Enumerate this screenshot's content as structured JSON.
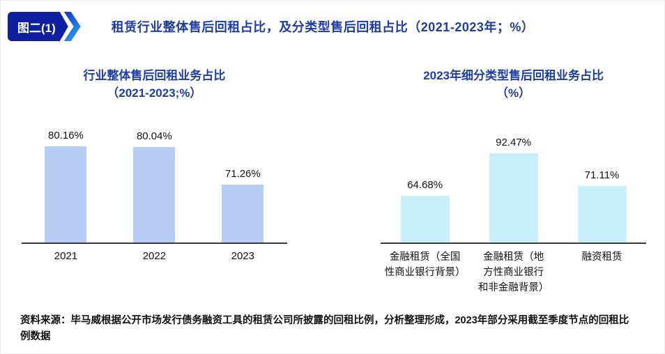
{
  "header": {
    "figure_label": "图二(1)",
    "title": "租赁行业整体售后回租占比，及分类型售后回租占比（2021-2023年；%）"
  },
  "chart_data": [
    {
      "type": "bar",
      "title": "行业整体售后回租业务占比",
      "subtitle": "（2021-2023;%）",
      "categories": [
        "2021",
        "2022",
        "2023"
      ],
      "categories_lines": [
        [
          "2021"
        ],
        [
          "2022"
        ],
        [
          "2023"
        ]
      ],
      "values": [
        80.16,
        80.04,
        71.26
      ],
      "value_labels": [
        "80.16%",
        "80.04%",
        "71.26%"
      ],
      "bar_color": "#b6cdf6",
      "xlabel": "",
      "ylabel": "",
      "ylim": [
        58,
        84
      ],
      "grid": false,
      "legend": "none",
      "data_labels_position": "above-bar"
    },
    {
      "type": "bar",
      "title": "2023年细分类型售后回租业务占比",
      "subtitle": "（%）",
      "categories": [
        "金融租赁（全国性商业银行背景）",
        "金融租赁（地方性商业银行和非金融背景）",
        "融资租赁"
      ],
      "categories_lines": [
        [
          "金融租赁（全国",
          "性商业银行背景）"
        ],
        [
          "金融租赁（地",
          "方性商业银行",
          "和非金融背景）"
        ],
        [
          "融资租赁"
        ]
      ],
      "values": [
        64.68,
        92.47,
        71.11
      ],
      "value_labels": [
        "64.68%",
        "92.47%",
        "71.11%"
      ],
      "bar_color": "#c9effc",
      "xlabel": "",
      "ylabel": "",
      "ylim": [
        34,
        108
      ],
      "grid": false,
      "legend": "none",
      "data_labels_position": "above-bar"
    }
  ],
  "footer": {
    "source": "资料来源：毕马威根据公开市场发行债务融资工具的租赁公司所披露的回租比例，分析整理形成，2023年部分采用截至季度节点的回租比例数据"
  },
  "colors": {
    "title_blue": "#1d3ca5",
    "badge_dark_blue": "#0e1f9f",
    "badge_accent_blue": "#2db1f5",
    "left_bar_fill": "#b6cdf6",
    "right_bar_fill": "#c9effc",
    "axis_line": "#3a3a3a",
    "text": "#111111"
  }
}
